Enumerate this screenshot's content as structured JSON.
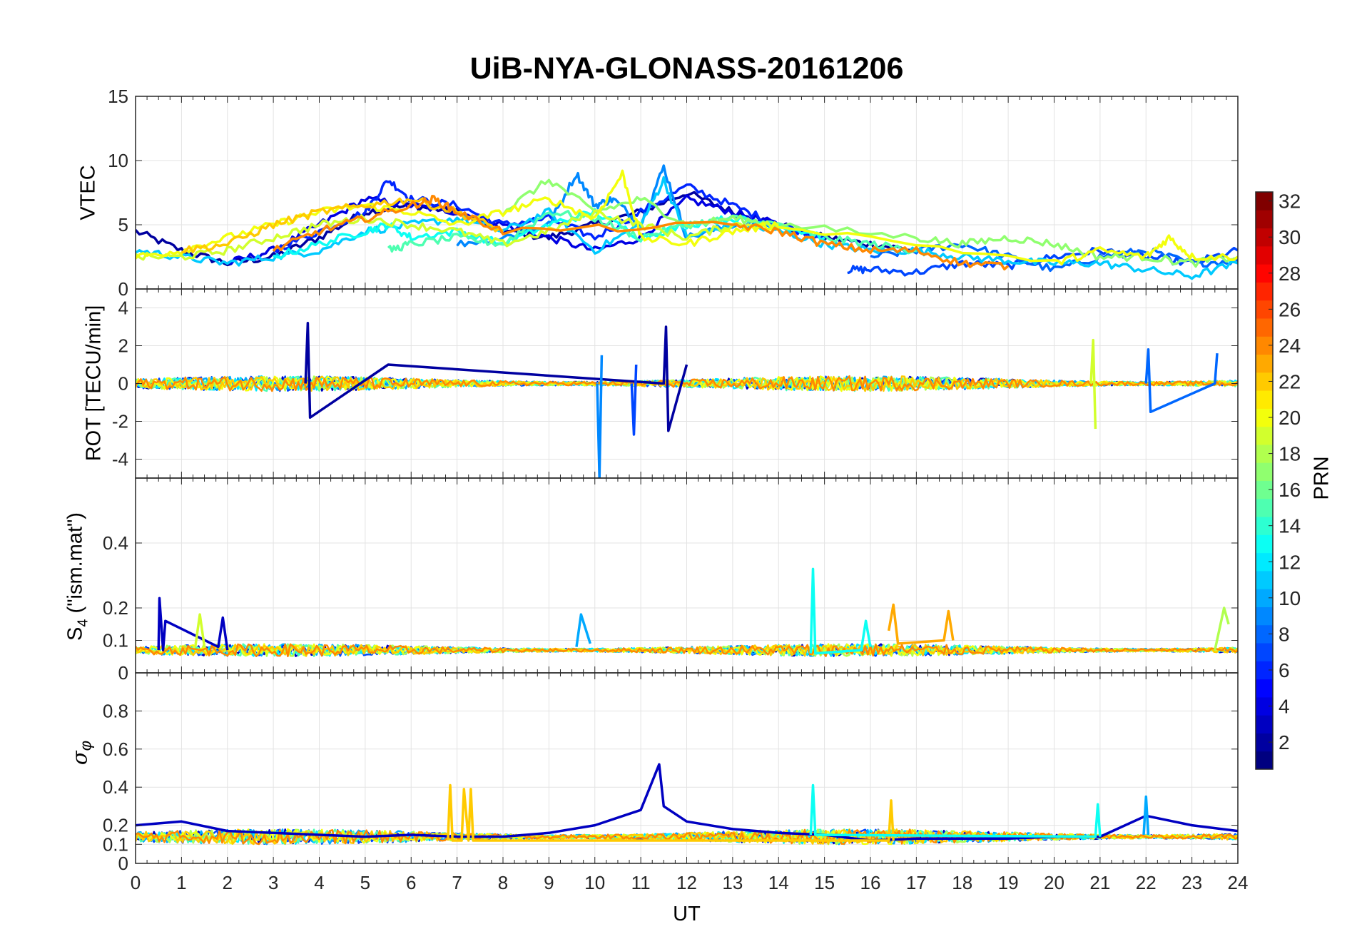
{
  "chart_data": {
    "type": "line",
    "title": "UiB-NYA-GLONASS-20161206",
    "xlabel": "UT",
    "xlim": [
      0,
      24
    ],
    "xticks": [
      0,
      1,
      2,
      3,
      4,
      5,
      6,
      7,
      8,
      9,
      10,
      11,
      12,
      13,
      14,
      15,
      16,
      17,
      18,
      19,
      20,
      21,
      22,
      23,
      24
    ],
    "grid": true,
    "colorbar": {
      "label": "PRN",
      "colormap": "jet",
      "range": [
        1,
        32
      ],
      "ticks": [
        2,
        4,
        6,
        8,
        10,
        12,
        14,
        16,
        18,
        20,
        22,
        24,
        26,
        28,
        30,
        32
      ]
    },
    "panels": [
      {
        "ylabel": "VTEC",
        "ylim": [
          0,
          15
        ],
        "yticks": [
          0,
          5,
          10,
          15
        ],
        "series": [
          {
            "prn": 2,
            "x": [
              0,
              1,
              2,
              3,
              4,
              5,
              6,
              7,
              8,
              9,
              10,
              11,
              12,
              13,
              14,
              15,
              16,
              17
            ],
            "y": [
              4.5,
              3,
              2,
              2.5,
              4,
              6,
              6.5,
              6,
              4.5,
              4,
              5,
              6,
              7.5,
              6,
              5,
              4,
              3.5,
              3
            ]
          },
          {
            "prn": 4,
            "x": [
              2,
              3,
              4,
              5,
              6,
              7,
              8,
              9,
              10,
              11,
              12,
              13,
              14
            ],
            "y": [
              2,
              3,
              5,
              7,
              6.5,
              6,
              5,
              4,
              3,
              4,
              7,
              6,
              5
            ]
          },
          {
            "prn": 6,
            "x": [
              3,
              4,
              5,
              5.5,
              6,
              7,
              8,
              9,
              10,
              11,
              12,
              13,
              14,
              15
            ],
            "y": [
              3,
              4.5,
              6,
              8.5,
              7,
              6.5,
              5,
              5.5,
              4,
              6,
              8,
              6.5,
              5,
              4
            ]
          },
          {
            "prn": 7,
            "x": [
              15.5,
              16,
              17,
              18,
              19,
              20,
              21,
              22,
              23,
              24
            ],
            "y": [
              1.5,
              1.5,
              1.3,
              2,
              1.8,
              2.5,
              3,
              2.5,
              2,
              3
            ]
          },
          {
            "prn": 8,
            "x": [
              16,
              17,
              18,
              19,
              20,
              21,
              22,
              23,
              24
            ],
            "y": [
              2.5,
              3,
              3.5,
              2.5,
              1.5,
              2.5,
              3,
              2,
              2.2
            ]
          },
          {
            "prn": 9,
            "x": [
              7,
              8,
              9,
              9.6,
              10,
              10.4,
              11,
              11.5,
              12,
              13,
              14
            ],
            "y": [
              3.5,
              4,
              5,
              9,
              6.5,
              7,
              5,
              9.5,
              4,
              5,
              5
            ]
          },
          {
            "prn": 11,
            "x": [
              0,
              1,
              2,
              3,
              4,
              5,
              6,
              7,
              8,
              9,
              10,
              11,
              11.5,
              12,
              13,
              14,
              15,
              16,
              17,
              18,
              19,
              20,
              21,
              22,
              23,
              24
            ],
            "y": [
              3,
              2.5,
              2,
              2.5,
              3,
              4.5,
              5,
              5.5,
              4.5,
              6,
              3,
              5,
              8.5,
              4,
              5,
              4.5,
              3.5,
              3,
              3,
              2.5,
              2.2,
              2,
              2,
              1.5,
              1,
              2
            ]
          },
          {
            "prn": 13,
            "x": [
              3,
              4,
              5,
              5.5,
              6,
              7,
              8,
              9,
              10,
              11,
              12,
              13,
              14,
              15
            ],
            "y": [
              2.5,
              3.5,
              4.5,
              5,
              4,
              4.5,
              3.5,
              5,
              6,
              4,
              5,
              5.5,
              5,
              4
            ]
          },
          {
            "prn": 15,
            "x": [
              5.5,
              6,
              7,
              8,
              9,
              10,
              11,
              12,
              13,
              14,
              15,
              16,
              17
            ],
            "y": [
              3,
              3.5,
              4,
              3.5,
              6,
              5.5,
              4,
              5,
              5.5,
              5,
              4,
              3.5,
              3
            ]
          },
          {
            "prn": 17,
            "x": [
              8,
              9,
              10,
              11,
              12,
              13,
              14,
              17,
              18,
              19,
              20,
              21,
              22,
              23,
              24
            ],
            "y": [
              6,
              8.5,
              6,
              7,
              5,
              5.5,
              5,
              4,
              3.5,
              4,
              3.5,
              2.5,
              2.5,
              2,
              2.5
            ]
          },
          {
            "prn": 19,
            "x": [
              0,
              1,
              2,
              3,
              4,
              5,
              6,
              7,
              8,
              9,
              10,
              11,
              12,
              13,
              14
            ],
            "y": [
              2.5,
              2.5,
              3,
              4,
              5,
              5.5,
              5,
              4.5,
              3.5,
              4.5,
              6,
              5,
              4,
              5,
              5
            ]
          },
          {
            "prn": 20,
            "x": [
              0,
              1,
              2,
              3,
              4,
              5,
              6,
              7,
              8,
              9,
              10,
              10.6,
              11,
              12,
              13,
              14,
              20,
              21,
              22,
              22.5,
              23,
              24
            ],
            "y": [
              2.5,
              3,
              4,
              5,
              6,
              6.5,
              6,
              5,
              6,
              7,
              5.5,
              9,
              4,
              3.5,
              4.5,
              5,
              2,
              3,
              2.5,
              4,
              2.5,
              2.5
            ]
          },
          {
            "prn": 22,
            "x": [
              1,
              2,
              3,
              4,
              5,
              6,
              7,
              8
            ],
            "y": [
              3,
              3.5,
              5,
              6,
              6.5,
              7,
              6,
              4.5
            ]
          },
          {
            "prn": 24,
            "x": [
              3,
              4,
              5,
              6,
              6.5,
              7,
              8,
              13,
              14,
              15,
              16,
              17,
              18,
              19
            ],
            "y": [
              3,
              4.5,
              5.5,
              6.5,
              7,
              6,
              4.5,
              5,
              4.5,
              3.5,
              3,
              3,
              2,
              1.8
            ]
          }
        ]
      },
      {
        "ylabel": "ROT [TECU/min]",
        "ylim": [
          -5,
          5
        ],
        "yticks": [
          -4,
          -2,
          0,
          2,
          4
        ],
        "series": [
          {
            "prn": 2,
            "x": [
              3.7,
              3.75,
              3.8,
              5.5,
              11.5,
              11.55,
              11.6,
              12
            ],
            "y": [
              0,
              3.2,
              -1.8,
              1,
              0,
              3,
              -2.5,
              1
            ]
          },
          {
            "prn": 9,
            "x": [
              10.05,
              10.1,
              10.15
            ],
            "y": [
              0,
              -5,
              1.5
            ]
          },
          {
            "prn": 7,
            "x": [
              10.8,
              10.85,
              10.9
            ],
            "y": [
              0,
              -2.7,
              1
            ]
          },
          {
            "prn": 19,
            "x": [
              20.8,
              20.85,
              20.9
            ],
            "y": [
              0,
              2.3,
              -2.4
            ]
          },
          {
            "prn": 8,
            "x": [
              22,
              22.05,
              22.1,
              23.5,
              23.55
            ],
            "y": [
              0,
              1.8,
              -1.5,
              0,
              1.6
            ]
          }
        ]
      },
      {
        "ylabel": "S4 (\"ism.mat\")",
        "ylabel_main": "S",
        "ylabel_sub": "4",
        "ylabel_rest": " (\"ism.mat\")",
        "ylim": [
          0,
          0.6
        ],
        "yticks": [
          0,
          0.1,
          0.2,
          0.4
        ],
        "series": [
          {
            "prn": 3,
            "x": [
              0.5,
              0.52,
              0.6,
              0.65,
              1.8,
              1.9,
              2
            ],
            "y": [
              0.07,
              0.23,
              0.07,
              0.16,
              0.08,
              0.17,
              0.07
            ]
          },
          {
            "prn": 19,
            "x": [
              1.3,
              1.4,
              1.5
            ],
            "y": [
              0.08,
              0.18,
              0.08
            ]
          },
          {
            "prn": 10,
            "x": [
              9.6,
              9.7,
              9.9
            ],
            "y": [
              0.08,
              0.18,
              0.09
            ]
          },
          {
            "prn": 13,
            "x": [
              14.7,
              14.75,
              14.8,
              15.8,
              15.9,
              16
            ],
            "y": [
              0.06,
              0.32,
              0.06,
              0.07,
              0.16,
              0.08
            ]
          },
          {
            "prn": 23,
            "x": [
              16.4,
              16.5,
              16.6,
              17.6,
              17.7,
              17.8
            ],
            "y": [
              0.13,
              0.21,
              0.09,
              0.1,
              0.19,
              0.1
            ]
          },
          {
            "prn": 18,
            "x": [
              23.5,
              23.7,
              23.8
            ],
            "y": [
              0.07,
              0.2,
              0.15
            ]
          }
        ]
      },
      {
        "ylabel": "σφ",
        "ylabel_main": "σ",
        "ylabel_sub": "φ",
        "ylim": [
          0,
          1
        ],
        "yticks": [
          0,
          0.1,
          0.2,
          0.4,
          0.6,
          0.8
        ],
        "series": [
          {
            "prn": 3,
            "x": [
              0,
              1,
              2,
              3,
              4,
              5,
              6,
              7,
              8,
              9,
              10,
              11,
              11.4,
              11.5,
              12,
              13,
              14,
              15,
              16,
              17,
              18,
              19,
              20,
              21,
              22,
              23,
              24
            ],
            "y": [
              0.2,
              0.22,
              0.17,
              0.16,
              0.15,
              0.14,
              0.15,
              0.14,
              0.14,
              0.16,
              0.2,
              0.28,
              0.52,
              0.3,
              0.22,
              0.18,
              0.16,
              0.15,
              0.12,
              0.13,
              0.13,
              0.13,
              0.14,
              0.14,
              0.25,
              0.2,
              0.17
            ]
          },
          {
            "prn": 22,
            "x": [
              6.8,
              6.85,
              6.9,
              7.1,
              7.15,
              7.25,
              7.3,
              7.35,
              16.4,
              16.45,
              16.5
            ],
            "y": [
              0.12,
              0.41,
              0.12,
              0.12,
              0.39,
              0.12,
              0.39,
              0.12,
              0.12,
              0.33,
              0.12
            ]
          },
          {
            "prn": 13,
            "x": [
              14.7,
              14.75,
              14.8,
              20.9,
              20.95,
              21
            ],
            "y": [
              0.15,
              0.41,
              0.15,
              0.14,
              0.31,
              0.14
            ]
          },
          {
            "prn": 10,
            "x": [
              21.95,
              22,
              22.05
            ],
            "y": [
              0.15,
              0.35,
              0.15
            ]
          }
        ]
      }
    ]
  }
}
